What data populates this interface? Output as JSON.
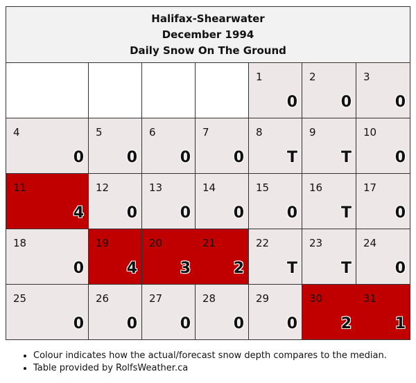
{
  "header": {
    "station": "Halifax-Shearwater",
    "period": "December 1994",
    "title": "Daily Snow On The Ground"
  },
  "colors": {
    "cell_default": "#ede7e8",
    "cell_above_median": "#c00000",
    "cell_empty": "#ffffff"
  },
  "cells": [
    {
      "day": "",
      "value": "",
      "status": "empty"
    },
    {
      "day": "",
      "value": "",
      "status": "empty"
    },
    {
      "day": "",
      "value": "",
      "status": "empty"
    },
    {
      "day": "",
      "value": "",
      "status": "empty"
    },
    {
      "day": "1",
      "value": "0",
      "status": "normal"
    },
    {
      "day": "2",
      "value": "0",
      "status": "normal"
    },
    {
      "day": "3",
      "value": "0",
      "status": "normal"
    },
    {
      "day": "4",
      "value": "0",
      "status": "normal"
    },
    {
      "day": "5",
      "value": "0",
      "status": "normal"
    },
    {
      "day": "6",
      "value": "0",
      "status": "normal"
    },
    {
      "day": "7",
      "value": "0",
      "status": "normal"
    },
    {
      "day": "8",
      "value": "T",
      "status": "normal"
    },
    {
      "day": "9",
      "value": "T",
      "status": "normal"
    },
    {
      "day": "10",
      "value": "0",
      "status": "normal"
    },
    {
      "day": "11",
      "value": "4",
      "status": "high"
    },
    {
      "day": "12",
      "value": "0",
      "status": "normal"
    },
    {
      "day": "13",
      "value": "0",
      "status": "normal"
    },
    {
      "day": "14",
      "value": "0",
      "status": "normal"
    },
    {
      "day": "15",
      "value": "0",
      "status": "normal"
    },
    {
      "day": "16",
      "value": "T",
      "status": "normal"
    },
    {
      "day": "17",
      "value": "0",
      "status": "normal"
    },
    {
      "day": "18",
      "value": "0",
      "status": "normal"
    },
    {
      "day": "19",
      "value": "4",
      "status": "high"
    },
    {
      "day": "20",
      "value": "3",
      "status": "high"
    },
    {
      "day": "21",
      "value": "2",
      "status": "high"
    },
    {
      "day": "22",
      "value": "T",
      "status": "normal"
    },
    {
      "day": "23",
      "value": "T",
      "status": "normal"
    },
    {
      "day": "24",
      "value": "0",
      "status": "normal"
    },
    {
      "day": "25",
      "value": "0",
      "status": "normal"
    },
    {
      "day": "26",
      "value": "0",
      "status": "normal"
    },
    {
      "day": "27",
      "value": "0",
      "status": "normal"
    },
    {
      "day": "28",
      "value": "0",
      "status": "normal"
    },
    {
      "day": "29",
      "value": "0",
      "status": "normal"
    },
    {
      "day": "30",
      "value": "2",
      "status": "high"
    },
    {
      "day": "31",
      "value": "1",
      "status": "high"
    }
  ],
  "notes": [
    "Colour indicates how the actual/forecast snow depth compares to the median.",
    "Table provided by RolfsWeather.ca"
  ]
}
